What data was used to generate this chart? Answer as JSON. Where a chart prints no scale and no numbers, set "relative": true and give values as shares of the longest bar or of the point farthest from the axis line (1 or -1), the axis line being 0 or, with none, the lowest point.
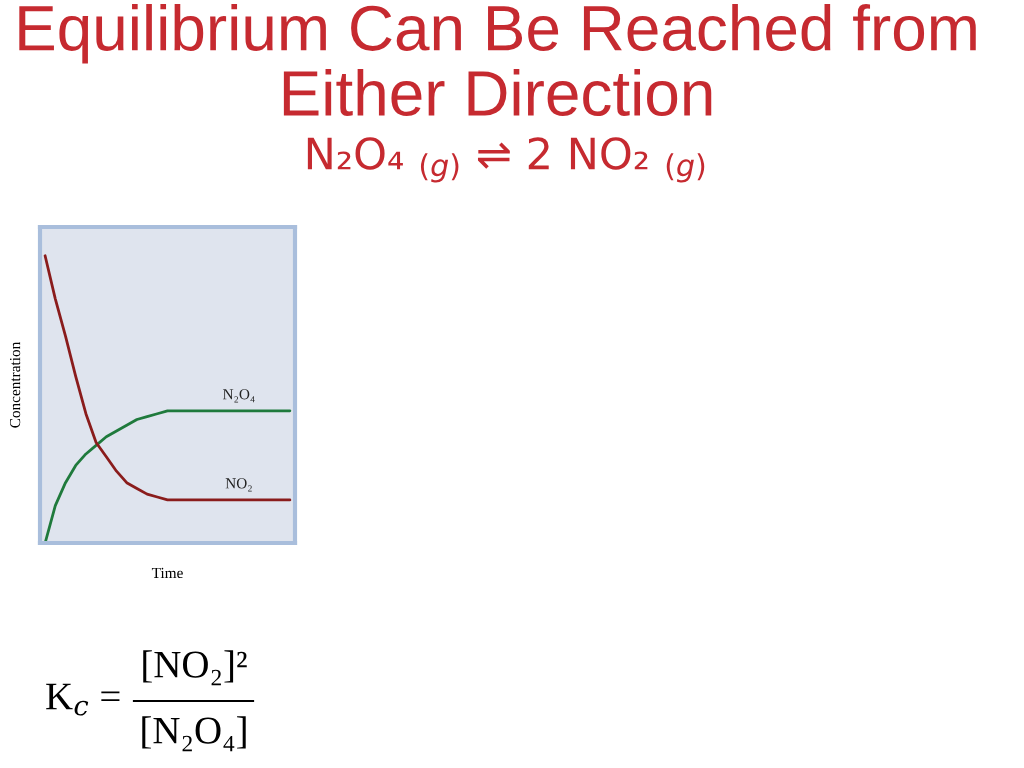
{
  "chart_data": {
    "type": "line",
    "title": "Equilibrium Can Be Reached from Either Direction",
    "subtitle": "N₂O₄ $_{(g)}$ ⇌ 2 NO₂ $_{(g)}$",
    "xlabel": "Time",
    "ylabel": "Concentration",
    "categories": [
      null,
      null,
      null,
      null,
      null,
      null,
      null,
      null,
      null,
      null,
      null,
      null,
      null,
      null,
      null,
      null,
      null,
      null,
      null,
      null,
      null,
      null,
      null,
      null,
      null
    ],
    "relative": true,
    "series": [
      {
        "name": "N₂O₄",
        "color": "#1f7a3c",
        "values": [
          0,
          0.13,
          0.21,
          0.27,
          0.31,
          0.34,
          0.37,
          0.39,
          0.41,
          0.43,
          0.44,
          0.45,
          0.46,
          0.46,
          0.46,
          0.46,
          0.46,
          0.46,
          0.46,
          0.46,
          0.46,
          0.46,
          0.46,
          0.46,
          0.46
        ]
      },
      {
        "name": "NO₂",
        "color": "#8a1c1c",
        "values": [
          1.0,
          0.85,
          0.72,
          0.58,
          0.45,
          0.35,
          0.3,
          0.25,
          0.21,
          0.19,
          0.17,
          0.16,
          0.15,
          0.15,
          0.15,
          0.15,
          0.15,
          0.15,
          0.15,
          0.15,
          0.15,
          0.15,
          0.15,
          0.15,
          0.15
        ]
      }
    ],
    "annotations": [
      "K$_{c}$ =",
      "[NO₂]²",
      "[N₂O₄]"
    ]
  }
}
